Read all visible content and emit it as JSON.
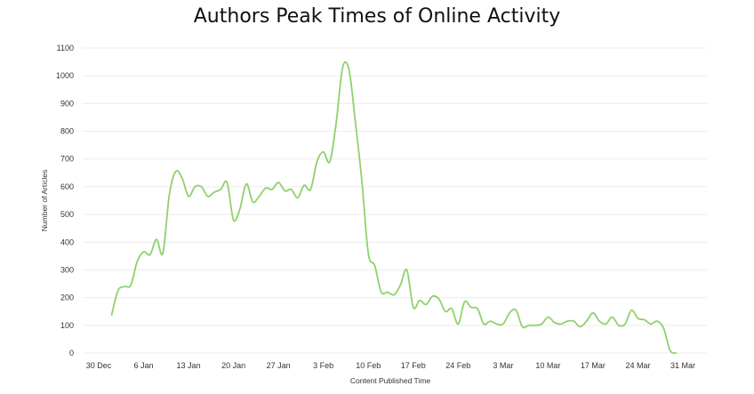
{
  "chart_data": {
    "type": "line",
    "title": "Authors Peak Times of Online Activity",
    "xlabel": "Content Published Time",
    "ylabel": "Number of Articles",
    "ylim": [
      0,
      1100
    ],
    "yticks": [
      0,
      100,
      200,
      300,
      400,
      500,
      600,
      700,
      800,
      900,
      1000,
      1100
    ],
    "xlim": [
      "2018-12-30",
      "2019-03-31"
    ],
    "xticks": [
      {
        "date": "2018-12-30",
        "label": "30 Dec"
      },
      {
        "date": "2019-01-06",
        "label": "6 Jan"
      },
      {
        "date": "2019-01-13",
        "label": "13 Jan"
      },
      {
        "date": "2019-01-20",
        "label": "20 Jan"
      },
      {
        "date": "2019-01-27",
        "label": "27 Jan"
      },
      {
        "date": "2019-02-03",
        "label": "3 Feb"
      },
      {
        "date": "2019-02-10",
        "label": "10 Feb"
      },
      {
        "date": "2019-02-17",
        "label": "17 Feb"
      },
      {
        "date": "2019-02-24",
        "label": "24 Feb"
      },
      {
        "date": "2019-03-03",
        "label": "3 Mar"
      },
      {
        "date": "2019-03-10",
        "label": "10 Mar"
      },
      {
        "date": "2019-03-17",
        "label": "17 Mar"
      },
      {
        "date": "2019-03-24",
        "label": "24 Mar"
      },
      {
        "date": "2019-03-31",
        "label": "31 Mar"
      }
    ],
    "grid": true,
    "legend": "none",
    "series": [
      {
        "color": "#8fd16a",
        "points": [
          [
            "2019-01-01",
            135
          ],
          [
            "2019-01-02",
            225
          ],
          [
            "2019-01-03",
            240
          ],
          [
            "2019-01-04",
            245
          ],
          [
            "2019-01-05",
            330
          ],
          [
            "2019-01-06",
            365
          ],
          [
            "2019-01-07",
            355
          ],
          [
            "2019-01-08",
            410
          ],
          [
            "2019-01-09",
            360
          ],
          [
            "2019-01-10",
            570
          ],
          [
            "2019-01-11",
            655
          ],
          [
            "2019-01-12",
            630
          ],
          [
            "2019-01-13",
            565
          ],
          [
            "2019-01-14",
            600
          ],
          [
            "2019-01-15",
            600
          ],
          [
            "2019-01-16",
            565
          ],
          [
            "2019-01-17",
            580
          ],
          [
            "2019-01-18",
            590
          ],
          [
            "2019-01-19",
            615
          ],
          [
            "2019-01-20",
            480
          ],
          [
            "2019-01-21",
            520
          ],
          [
            "2019-01-22",
            610
          ],
          [
            "2019-01-23",
            545
          ],
          [
            "2019-01-24",
            565
          ],
          [
            "2019-01-25",
            595
          ],
          [
            "2019-01-26",
            590
          ],
          [
            "2019-01-27",
            615
          ],
          [
            "2019-01-28",
            585
          ],
          [
            "2019-01-29",
            590
          ],
          [
            "2019-01-30",
            560
          ],
          [
            "2019-01-31",
            605
          ],
          [
            "2019-02-01",
            590
          ],
          [
            "2019-02-02",
            690
          ],
          [
            "2019-02-03",
            725
          ],
          [
            "2019-02-04",
            690
          ],
          [
            "2019-02-05",
            830
          ],
          [
            "2019-02-06",
            1030
          ],
          [
            "2019-02-07",
            1020
          ],
          [
            "2019-02-08",
            830
          ],
          [
            "2019-02-09",
            620
          ],
          [
            "2019-02-10",
            360
          ],
          [
            "2019-02-11",
            315
          ],
          [
            "2019-02-12",
            220
          ],
          [
            "2019-02-13",
            220
          ],
          [
            "2019-02-14",
            210
          ],
          [
            "2019-02-15",
            245
          ],
          [
            "2019-02-16",
            300
          ],
          [
            "2019-02-17",
            165
          ],
          [
            "2019-02-18",
            190
          ],
          [
            "2019-02-19",
            175
          ],
          [
            "2019-02-20",
            205
          ],
          [
            "2019-02-21",
            195
          ],
          [
            "2019-02-22",
            150
          ],
          [
            "2019-02-23",
            160
          ],
          [
            "2019-02-24",
            105
          ],
          [
            "2019-02-25",
            185
          ],
          [
            "2019-02-26",
            165
          ],
          [
            "2019-02-27",
            160
          ],
          [
            "2019-02-28",
            105
          ],
          [
            "2019-03-01",
            115
          ],
          [
            "2019-03-02",
            105
          ],
          [
            "2019-03-03",
            105
          ],
          [
            "2019-03-04",
            145
          ],
          [
            "2019-03-05",
            155
          ],
          [
            "2019-03-06",
            95
          ],
          [
            "2019-03-07",
            100
          ],
          [
            "2019-03-08",
            100
          ],
          [
            "2019-03-09",
            105
          ],
          [
            "2019-03-10",
            130
          ],
          [
            "2019-03-11",
            110
          ],
          [
            "2019-03-12",
            105
          ],
          [
            "2019-03-13",
            115
          ],
          [
            "2019-03-14",
            115
          ],
          [
            "2019-03-15",
            95
          ],
          [
            "2019-03-16",
            115
          ],
          [
            "2019-03-17",
            145
          ],
          [
            "2019-03-18",
            115
          ],
          [
            "2019-03-19",
            105
          ],
          [
            "2019-03-20",
            130
          ],
          [
            "2019-03-21",
            100
          ],
          [
            "2019-03-22",
            105
          ],
          [
            "2019-03-23",
            155
          ],
          [
            "2019-03-24",
            125
          ],
          [
            "2019-03-25",
            120
          ],
          [
            "2019-03-26",
            105
          ],
          [
            "2019-03-27",
            115
          ],
          [
            "2019-03-28",
            90
          ],
          [
            "2019-03-29",
            10
          ],
          [
            "2019-03-30",
            0
          ]
        ]
      }
    ]
  }
}
